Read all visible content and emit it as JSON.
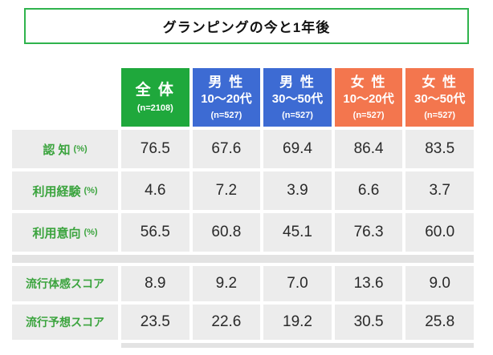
{
  "chart_data": {
    "type": "table",
    "title": "グランピングの今と1年後",
    "columns": [
      {
        "group": "全 体",
        "age": "",
        "n": "(n=2108)"
      },
      {
        "group": "男 性",
        "age": "10〜20代",
        "n": "(n=527)"
      },
      {
        "group": "男 性",
        "age": "30〜50代",
        "n": "(n=527)"
      },
      {
        "group": "女 性",
        "age": "10〜20代",
        "n": "(n=527)"
      },
      {
        "group": "女 性",
        "age": "30〜50代",
        "n": "(n=527)"
      }
    ],
    "percent_rows": [
      {
        "label": "認 知",
        "unit": "(%)",
        "values": [
          "76.5",
          "67.6",
          "69.4",
          "86.4",
          "83.5"
        ]
      },
      {
        "label": "利用経験",
        "unit": "(%)",
        "values": [
          "4.6",
          "7.2",
          "3.9",
          "6.6",
          "3.7"
        ]
      },
      {
        "label": "利用意向",
        "unit": "(%)",
        "values": [
          "56.5",
          "60.8",
          "45.1",
          "76.3",
          "60.0"
        ]
      }
    ],
    "score_rows": [
      {
        "label": "流行体感スコア",
        "values": [
          "8.9",
          "9.2",
          "7.0",
          "13.6",
          "9.0"
        ]
      },
      {
        "label": "流行予想スコア",
        "values": [
          "23.5",
          "22.6",
          "19.2",
          "30.5",
          "25.8"
        ]
      }
    ]
  },
  "colors": {
    "total_header": "#1fa83c",
    "male_header": "#3d6bd3",
    "female_header": "#f3764e",
    "label_text": "#3ba43e",
    "cell_bg": "#ececec",
    "separator": "#e3e3e3",
    "title_border": "#2fb34d",
    "value_text": "#2a2a2a"
  }
}
